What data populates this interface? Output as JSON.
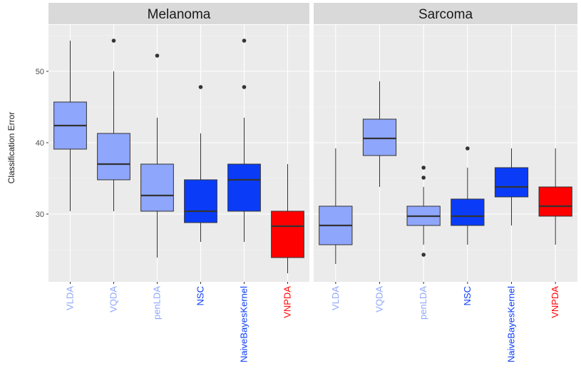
{
  "chart_data": {
    "type": "boxplot",
    "ylabel": "Classification Error",
    "xlabel": "",
    "ylim": [
      20.5,
      56.5
    ],
    "y_ticks": [
      30,
      40,
      50
    ],
    "grid": true,
    "categories": [
      "VLDA",
      "VQDA",
      "penLDA",
      "NSC",
      "NaiveBayesKernel",
      "VNPDA"
    ],
    "category_colors": [
      "#8ea6fb",
      "#8ea6fb",
      "#8ea6fb",
      "#0a3cf8",
      "#0a3cf8",
      "#ff0000"
    ],
    "panels": [
      {
        "title": "Melanoma",
        "boxes": [
          {
            "category": "VLDA",
            "whisker_low": 30.4,
            "q1": 39.1,
            "median": 42.4,
            "q3": 45.7,
            "whisker_high": 54.3,
            "outliers": []
          },
          {
            "category": "VQDA",
            "whisker_low": 30.4,
            "q1": 34.8,
            "median": 37.0,
            "q3": 41.3,
            "whisker_high": 50.0,
            "outliers": [
              54.3
            ]
          },
          {
            "category": "penLDA",
            "whisker_low": 23.9,
            "q1": 30.4,
            "median": 32.6,
            "q3": 37.0,
            "whisker_high": 43.5,
            "outliers": [
              52.2
            ]
          },
          {
            "category": "NSC",
            "whisker_low": 26.1,
            "q1": 28.8,
            "median": 30.4,
            "q3": 34.8,
            "whisker_high": 41.3,
            "outliers": [
              47.8
            ]
          },
          {
            "category": "NaiveBayesKernel",
            "whisker_low": 26.1,
            "q1": 30.4,
            "median": 34.8,
            "q3": 37.0,
            "whisker_high": 43.5,
            "outliers": [
              47.8,
              54.3
            ]
          },
          {
            "category": "VNPDA",
            "whisker_low": 21.7,
            "q1": 23.9,
            "median": 28.3,
            "q3": 30.4,
            "whisker_high": 37.0,
            "outliers": []
          }
        ]
      },
      {
        "title": "Sarcoma",
        "boxes": [
          {
            "category": "VLDA",
            "whisker_low": 23.0,
            "q1": 25.7,
            "median": 28.4,
            "q3": 31.1,
            "whisker_high": 39.2,
            "outliers": []
          },
          {
            "category": "VQDA",
            "whisker_low": 33.8,
            "q1": 38.2,
            "median": 40.6,
            "q3": 43.3,
            "whisker_high": 48.6,
            "outliers": []
          },
          {
            "category": "penLDA",
            "whisker_low": 25.7,
            "q1": 28.4,
            "median": 29.7,
            "q3": 31.1,
            "whisker_high": 33.8,
            "outliers": [
              24.3,
              35.1,
              36.5
            ]
          },
          {
            "category": "NSC",
            "whisker_low": 25.7,
            "q1": 28.4,
            "median": 29.7,
            "q3": 32.1,
            "whisker_high": 36.5,
            "outliers": [
              39.2
            ]
          },
          {
            "category": "NaiveBayesKernel",
            "whisker_low": 28.4,
            "q1": 32.4,
            "median": 33.8,
            "q3": 36.5,
            "whisker_high": 39.2,
            "outliers": []
          },
          {
            "category": "VNPDA",
            "whisker_low": 25.7,
            "q1": 29.7,
            "median": 31.1,
            "q3": 33.8,
            "whisker_high": 39.2,
            "outliers": []
          }
        ]
      }
    ]
  }
}
